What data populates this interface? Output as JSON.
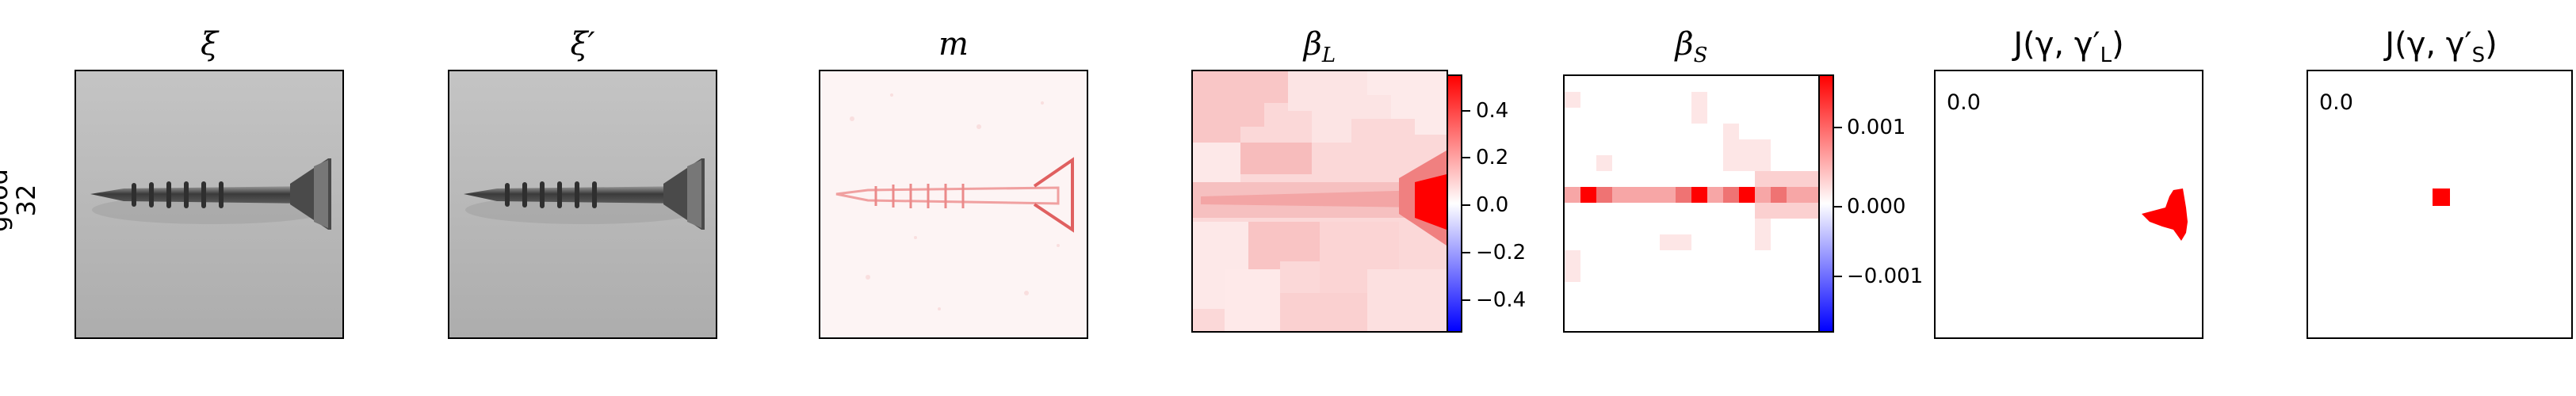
{
  "row_label": {
    "line1": "good",
    "line2": "32"
  },
  "panels": [
    {
      "id": "xi",
      "title": "ξ"
    },
    {
      "id": "xi_prime",
      "title": "ξ′"
    },
    {
      "id": "m",
      "title": "m"
    },
    {
      "id": "beta_L",
      "title": "βL",
      "title_main": "β",
      "title_sub": "L"
    },
    {
      "id": "beta_S",
      "title": "βS",
      "title_main": "β",
      "title_sub": "S"
    },
    {
      "id": "J_L",
      "title": "J(γ, γ′L)",
      "title_main": "J(γ, γ′",
      "title_sub": "L",
      "title_end": ")",
      "value": "0.0"
    },
    {
      "id": "J_S",
      "title": "J(γ, γ′S)",
      "title_main": "J(γ, γ′",
      "title_sub": "S",
      "title_end": ")",
      "value": "0.0"
    }
  ],
  "colorbar_L": {
    "ticks": [
      "0.4",
      "0.2",
      "0.0",
      "−0.2",
      "−0.4"
    ],
    "colors": {
      "high": "#ff0000",
      "mid": "#ffffff",
      "low": "#0000ff"
    }
  },
  "colorbar_S": {
    "ticks": [
      "0.001",
      "0.000",
      "−0.001"
    ],
    "colors": {
      "high": "#ff0000",
      "mid": "#ffffff",
      "low": "#0000ff"
    }
  }
}
